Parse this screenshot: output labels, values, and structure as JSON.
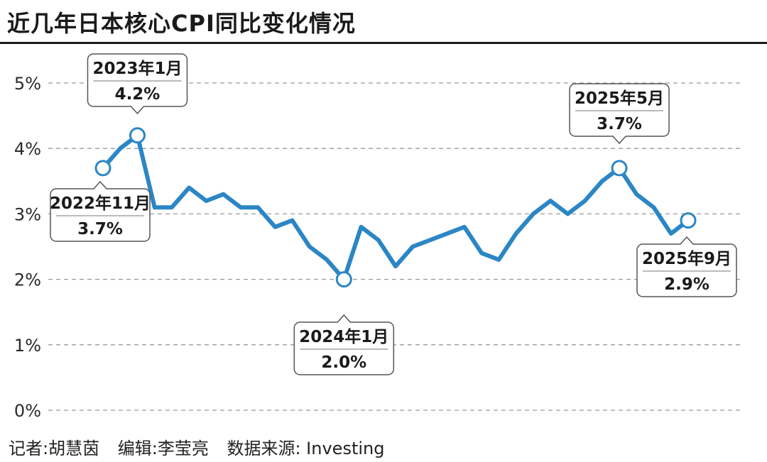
{
  "title": "近几年日本核心CPI同比变化情况",
  "footer": {
    "reporter": "记者:胡慧茵",
    "editor": "编辑:李莹亮",
    "source": "数据来源: Investing"
  },
  "chart_data": {
    "type": "line",
    "title": "近几年日本核心CPI同比变化情况",
    "xlabel": "",
    "ylabel": "",
    "ylim": [
      0,
      5
    ],
    "yticks": [
      0,
      1,
      2,
      3,
      4,
      5
    ],
    "ytick_labels": [
      "0%",
      "1%",
      "2%",
      "3%",
      "4%",
      "5%"
    ],
    "grid": "horizontal dashed",
    "line_color": "#2b86c5",
    "series": [
      {
        "values": [
          3.7,
          4.0,
          4.2,
          3.1,
          3.1,
          3.4,
          3.2,
          3.3,
          3.1,
          3.1,
          2.8,
          2.9,
          2.5,
          2.3,
          2.0,
          2.8,
          2.6,
          2.2,
          2.5,
          2.6,
          2.7,
          2.8,
          2.4,
          2.3,
          2.7,
          3.0,
          3.2,
          3.0,
          3.2,
          3.5,
          3.7,
          3.3,
          3.1,
          2.7,
          2.9
        ]
      }
    ],
    "annotations": [
      {
        "index": 0,
        "date": "2022年11月",
        "value": "3.7%"
      },
      {
        "index": 2,
        "date": "2023年1月",
        "value": "4.2%"
      },
      {
        "index": 14,
        "date": "2024年1月",
        "value": "2.0%"
      },
      {
        "index": 30,
        "date": "2025年5月",
        "value": "3.7%"
      },
      {
        "index": 34,
        "date": "2025年9月",
        "value": "2.9%"
      }
    ]
  }
}
